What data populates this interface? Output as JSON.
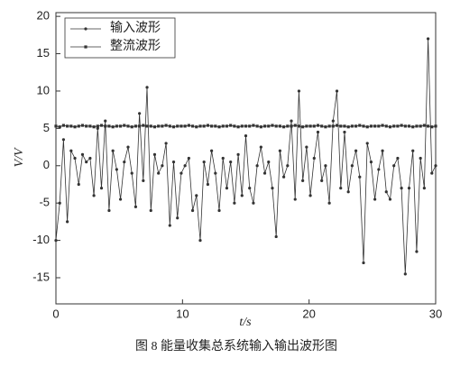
{
  "chart_data": {
    "type": "line",
    "caption": "图 8  能量收集总系统输入输出波形图",
    "xlabel": "t/s",
    "ylabel": "V/V",
    "xlim": [
      0,
      30
    ],
    "xticks": [
      0,
      10,
      20,
      30
    ],
    "ylim": [
      -18.5,
      20.5
    ],
    "yticks": [
      -15,
      -10,
      -5,
      0,
      5,
      10,
      15,
      20
    ],
    "legend": "upper left",
    "x": [
      0,
      0.3,
      0.6,
      0.9,
      1.2,
      1.5,
      1.8,
      2.1,
      2.4,
      2.7,
      3.0,
      3.3,
      3.6,
      3.9,
      4.2,
      4.5,
      4.8,
      5.1,
      5.4,
      5.7,
      6.0,
      6.3,
      6.6,
      6.9,
      7.2,
      7.5,
      7.8,
      8.1,
      8.4,
      8.7,
      9.0,
      9.3,
      9.6,
      9.9,
      10.2,
      10.5,
      10.8,
      11.1,
      11.4,
      11.7,
      12.0,
      12.3,
      12.6,
      12.9,
      13.2,
      13.5,
      13.8,
      14.1,
      14.4,
      14.7,
      15.0,
      15.3,
      15.6,
      15.9,
      16.2,
      16.5,
      16.8,
      17.1,
      17.4,
      17.7,
      18.0,
      18.3,
      18.6,
      18.9,
      19.2,
      19.5,
      19.8,
      20.1,
      20.4,
      20.7,
      21.0,
      21.3,
      21.6,
      21.9,
      22.2,
      22.5,
      22.8,
      23.1,
      23.4,
      23.7,
      24.0,
      24.3,
      24.6,
      24.9,
      25.2,
      25.5,
      25.8,
      26.1,
      26.4,
      26.7,
      27.0,
      27.3,
      27.6,
      27.9,
      28.2,
      28.5,
      28.8,
      29.1,
      29.4,
      29.7,
      30.0
    ],
    "series": [
      {
        "name": "输入波形",
        "color": "#333333",
        "marker": "circle",
        "values": [
          -10,
          -5,
          3.5,
          -7.5,
          2,
          1,
          -2.5,
          1.5,
          0.5,
          1,
          -4,
          5,
          -3,
          6,
          -6,
          2,
          -0.5,
          -4.5,
          0.5,
          2.5,
          -1,
          -5.5,
          7,
          -2,
          10.5,
          -6,
          1.5,
          -1,
          0,
          3,
          -8,
          0.5,
          -7,
          -1,
          0,
          1,
          -6,
          -4,
          -10,
          0.5,
          -2.5,
          2,
          -1,
          -6,
          1,
          -3,
          0.5,
          -5,
          1.5,
          -4,
          4,
          -3,
          -5,
          0,
          2.5,
          -1,
          0.5,
          -3,
          -9.5,
          2,
          -1.5,
          0,
          6,
          -4.5,
          10,
          -2,
          2.5,
          -4,
          1,
          4.5,
          -2,
          0,
          -5,
          6,
          10,
          -3,
          4.5,
          -3.5,
          0,
          2,
          -1.5,
          -13,
          3,
          0.5,
          -4.5,
          -0.5,
          2,
          -3.5,
          -4.5,
          0,
          1,
          -3,
          -14.5,
          -3,
          2,
          -11.5,
          1,
          -3,
          17,
          -1,
          0
        ]
      },
      {
        "name": "整流波形",
        "color": "#333333",
        "marker": "square",
        "values": [
          5.3,
          5.2,
          5.4,
          5.3,
          5.3,
          5.2,
          5.3,
          5.4,
          5.3,
          5.3,
          5.2,
          5.3,
          5.4,
          5.3,
          5.3,
          5.2,
          5.3,
          5.3,
          5.4,
          5.3,
          5.2,
          5.3,
          5.3,
          5.4,
          5.3,
          5.3,
          5.2,
          5.3,
          5.3,
          5.4,
          5.3,
          5.2,
          5.3,
          5.3,
          5.3,
          5.4,
          5.3,
          5.2,
          5.3,
          5.3,
          5.4,
          5.3,
          5.3,
          5.2,
          5.3,
          5.3,
          5.4,
          5.3,
          5.2,
          5.3,
          5.3,
          5.3,
          5.4,
          5.3,
          5.2,
          5.3,
          5.3,
          5.4,
          5.3,
          5.3,
          5.2,
          5.3,
          5.3,
          5.4,
          5.3,
          5.2,
          5.3,
          5.3,
          5.3,
          5.4,
          5.3,
          5.2,
          5.3,
          5.3,
          5.4,
          5.3,
          5.3,
          5.2,
          5.3,
          5.3,
          5.4,
          5.3,
          5.2,
          5.3,
          5.3,
          5.3,
          5.4,
          5.3,
          5.2,
          5.3,
          5.3,
          5.4,
          5.3,
          5.3,
          5.2,
          5.3,
          5.3,
          5.4,
          5.3,
          5.2,
          5.3
        ]
      }
    ]
  }
}
